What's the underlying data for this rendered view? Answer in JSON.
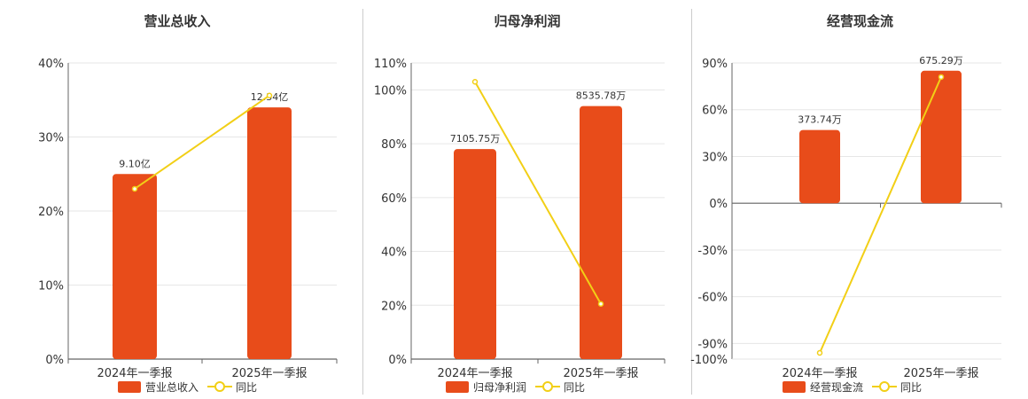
{
  "chart_data": [
    {
      "type": "bar",
      "title": "营业总收入",
      "categories": [
        "2024年一季报",
        "2025年一季报"
      ],
      "series": [
        {
          "name": "营业总收入",
          "type": "bar",
          "values": [
            25,
            34
          ],
          "labels": [
            "9.10亿",
            "12.34亿"
          ]
        },
        {
          "name": "同比",
          "type": "line",
          "values": [
            23,
            35.6
          ]
        }
      ],
      "yticks": [
        "0%",
        "10%",
        "20%",
        "30%",
        "40%"
      ],
      "ytick_values": [
        0,
        10,
        20,
        30,
        40
      ],
      "ylim": [
        0,
        40
      ]
    },
    {
      "type": "bar",
      "title": "归母净利润",
      "categories": [
        "2024年一季报",
        "2025年一季报"
      ],
      "series": [
        {
          "name": "归母净利润",
          "type": "bar",
          "values": [
            78,
            94
          ],
          "labels": [
            "7105.75万",
            "8535.78万"
          ]
        },
        {
          "name": "同比",
          "type": "line",
          "values": [
            103,
            20.5
          ]
        }
      ],
      "yticks": [
        "0%",
        "20%",
        "40%",
        "60%",
        "80%",
        "100%",
        "110%"
      ],
      "ytick_values": [
        0,
        20,
        40,
        60,
        80,
        100,
        110
      ],
      "ylim": [
        0,
        110
      ]
    },
    {
      "type": "bar",
      "title": "经营现金流",
      "categories": [
        "2024年一季报",
        "2025年一季报"
      ],
      "series": [
        {
          "name": "经营现金流",
          "type": "bar",
          "values": [
            47,
            85
          ],
          "labels": [
            "373.74万",
            "675.29万"
          ]
        },
        {
          "name": "同比",
          "type": "line",
          "values": [
            -96,
            81
          ]
        }
      ],
      "yticks": [
        "-100%",
        "-90%",
        "-60%",
        "-30%",
        "0%",
        "30%",
        "60%",
        "90%"
      ],
      "ytick_values": [
        -100,
        -90,
        -60,
        -30,
        0,
        30,
        60,
        90
      ],
      "ylim": [
        -100,
        90
      ]
    }
  ],
  "colors": {
    "bar": "#e84c1a",
    "line": "#f2cf16",
    "grid": "#e6e6e6",
    "axis": "#666666"
  }
}
